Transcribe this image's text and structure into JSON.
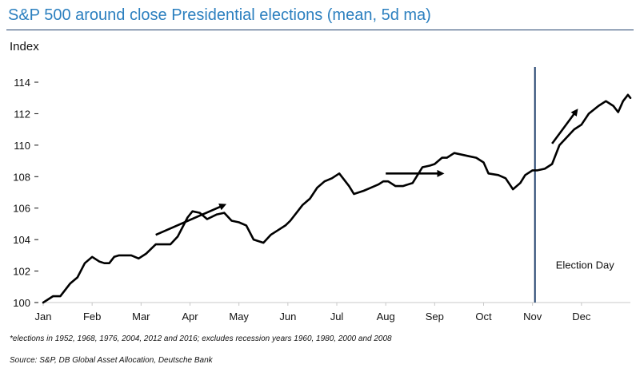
{
  "title": "S&P 500 around close Presidential elections  (mean, 5d ma)",
  "footnote": "*elections in 1952, 1968, 1976, 2004, 2012 and 2016; excludes recession years 1960, 1980, 2000 and 2008",
  "source": "Source: S&P, DB Global Asset Allocation, Deutsche Bank",
  "colors": {
    "title": "#2b7fbf",
    "series": "#000000",
    "marker_line": "#1f3f6b",
    "axis": "#c8c8c8"
  },
  "chart_data": {
    "type": "line",
    "title": "S&P 500 around close Presidential elections  (mean, 5d ma)",
    "ylabel": "Index",
    "xlabel": "",
    "ylim": [
      100,
      114
    ],
    "xlim": [
      0,
      12
    ],
    "x_unit": "months from Jan 1",
    "yticks": [
      "100",
      "102",
      "104",
      "106",
      "108",
      "110",
      "112",
      "114"
    ],
    "xticks": [
      {
        "label": "Jan",
        "x": 0
      },
      {
        "label": "Feb",
        "x": 1
      },
      {
        "label": "Mar",
        "x": 2
      },
      {
        "label": "Apr",
        "x": 3
      },
      {
        "label": "May",
        "x": 4
      },
      {
        "label": "Jun",
        "x": 5
      },
      {
        "label": "Jul",
        "x": 6
      },
      {
        "label": "Aug",
        "x": 7
      },
      {
        "label": "Sep",
        "x": 8
      },
      {
        "label": "Oct",
        "x": 9
      },
      {
        "label": "Nov",
        "x": 10
      },
      {
        "label": "Dec",
        "x": 11
      }
    ],
    "grid": false,
    "series": [
      {
        "x": [
          0,
          0.2,
          0.35,
          0.55,
          0.7,
          0.85,
          1.0,
          1.15,
          1.25,
          1.35,
          1.45,
          1.55,
          1.65,
          1.8,
          1.95,
          2.1,
          2.3,
          2.45,
          2.6,
          2.75,
          2.85,
          2.95,
          3.05,
          3.2,
          3.35,
          3.55,
          3.7,
          3.85,
          4.0,
          4.15,
          4.3,
          4.5,
          4.65,
          4.8,
          4.95,
          5.05,
          5.2,
          5.3,
          5.45,
          5.6,
          5.75,
          5.9,
          6.05,
          6.25,
          6.35,
          6.55,
          6.7,
          6.85,
          6.95,
          7.05,
          7.2,
          7.35,
          7.55,
          7.75,
          7.9,
          8.0,
          8.15,
          8.25,
          8.4,
          8.55,
          8.7,
          8.85,
          9.0,
          9.1,
          9.3,
          9.45,
          9.6,
          9.75,
          9.85,
          10.0,
          10.1,
          10.25,
          10.4,
          10.55,
          10.7,
          10.85,
          11.0,
          11.15,
          11.35,
          11.5,
          11.65,
          11.75,
          11.85,
          11.95,
          12.0
        ],
        "values": [
          100.0,
          100.4,
          100.4,
          101.2,
          101.6,
          102.5,
          102.9,
          102.6,
          102.5,
          102.5,
          102.9,
          103.0,
          103.0,
          103.0,
          102.8,
          103.1,
          103.7,
          103.7,
          103.7,
          104.2,
          104.8,
          105.4,
          105.8,
          105.7,
          105.3,
          105.6,
          105.7,
          105.2,
          105.1,
          104.9,
          104.0,
          103.8,
          104.3,
          104.6,
          104.9,
          105.2,
          105.8,
          106.2,
          106.6,
          107.3,
          107.7,
          107.9,
          108.2,
          107.4,
          106.9,
          107.1,
          107.3,
          107.5,
          107.7,
          107.7,
          107.4,
          107.4,
          107.6,
          108.6,
          108.7,
          108.8,
          109.2,
          109.2,
          109.5,
          109.4,
          109.3,
          109.2,
          108.9,
          108.2,
          108.1,
          107.9,
          107.2,
          107.6,
          108.1,
          108.4,
          108.4,
          108.5,
          108.8,
          110.0,
          110.5,
          111.0,
          111.3,
          112.0,
          112.5,
          112.8,
          112.5,
          112.1,
          112.8,
          113.2,
          113.0
        ]
      }
    ],
    "annotations": [
      {
        "type": "vline",
        "x": 10.05,
        "label": "Election Day",
        "label_y": 102.4
      },
      {
        "type": "arrow",
        "x1": 2.3,
        "y1": 104.3,
        "x2": 3.7,
        "y2": 106.2
      },
      {
        "type": "arrow",
        "x1": 7.0,
        "y1": 108.2,
        "x2": 8.15,
        "y2": 108.2
      },
      {
        "type": "arrow",
        "x1": 10.4,
        "y1": 110.1,
        "x2": 10.9,
        "y2": 112.2
      }
    ]
  }
}
